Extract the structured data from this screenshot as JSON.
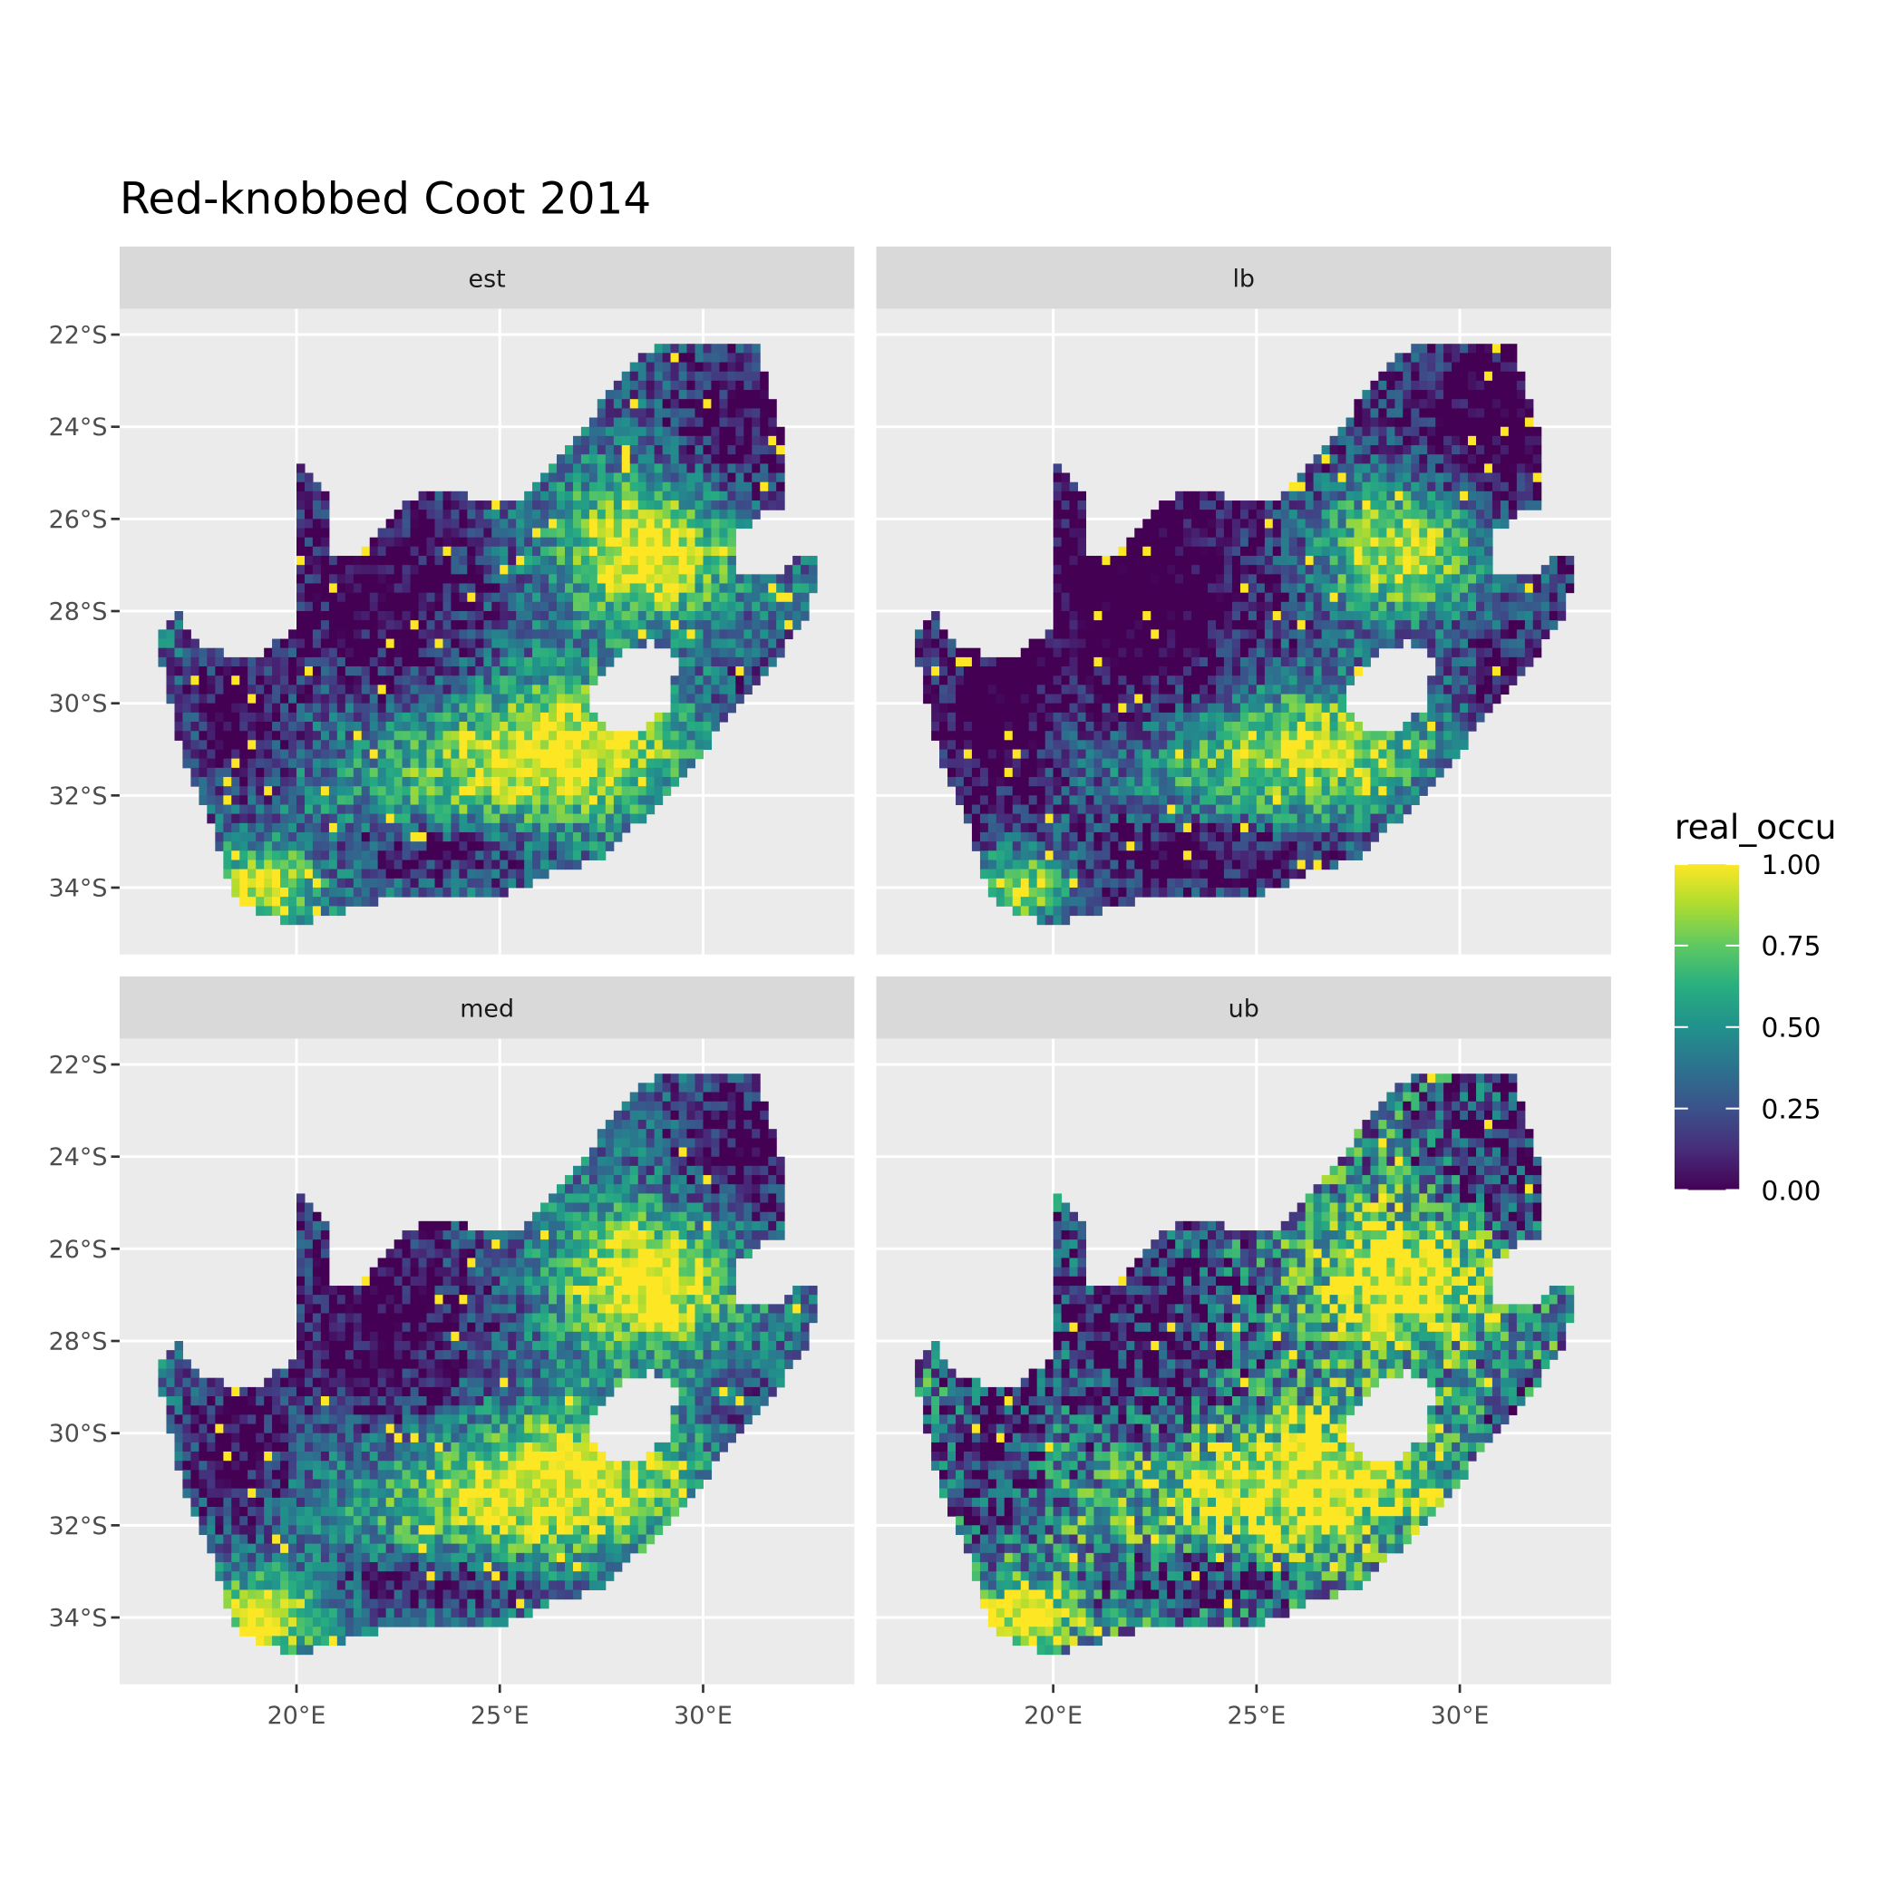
{
  "chart_data": {
    "type": "heatmap",
    "title": "Red-knobbed Coot 2014",
    "facets": [
      "est",
      "lb",
      "med",
      "ub"
    ],
    "x_ticks": [
      {
        "value": 20,
        "label": "20°E"
      },
      {
        "value": 25,
        "label": "25°E"
      },
      {
        "value": 30,
        "label": "30°E"
      }
    ],
    "y_ticks": [
      {
        "value": -22,
        "label": "22°S"
      },
      {
        "value": -24,
        "label": "24°S"
      },
      {
        "value": -26,
        "label": "26°S"
      },
      {
        "value": -28,
        "label": "28°S"
      },
      {
        "value": -30,
        "label": "30°S"
      },
      {
        "value": -32,
        "label": "32°S"
      },
      {
        "value": -34,
        "label": "34°S"
      }
    ],
    "xlim": [
      15.65,
      33.72
    ],
    "ylim": [
      -35.45,
      -21.44
    ],
    "grid": true,
    "legend": {
      "title": "real_occu",
      "position": "right",
      "colormap": "viridis",
      "range": [
        0,
        1
      ],
      "breaks": [
        {
          "value": 1,
          "label": "1.00"
        },
        {
          "value": 0.75,
          "label": "0.75"
        },
        {
          "value": 0.5,
          "label": "0.50"
        },
        {
          "value": 0.25,
          "label": "0.25"
        },
        {
          "value": 0,
          "label": "0.00"
        }
      ]
    },
    "colors": {
      "panel_bg": "#EBEBEB",
      "strip_bg": "#D9D9D9",
      "grid": "#FFFFFF"
    }
  }
}
